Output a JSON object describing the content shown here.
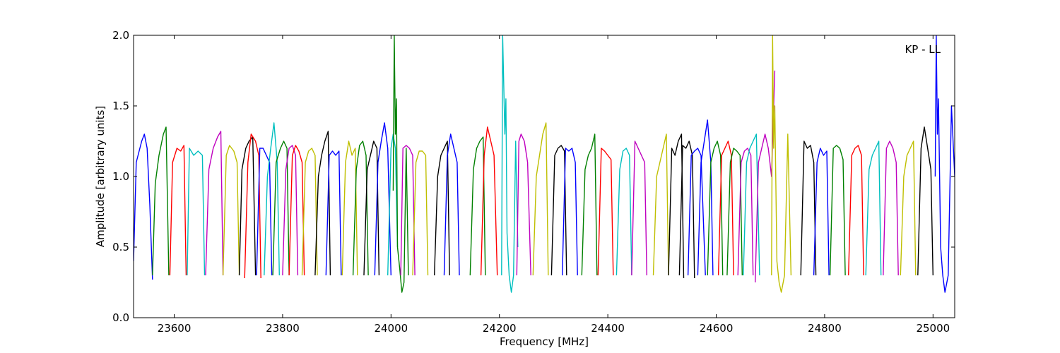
{
  "chart_data": {
    "type": "line",
    "title": "",
    "xlabel": "Frequency [MHz]",
    "ylabel": "Amplitude [arbitrary units]",
    "annotation": "KP - LL",
    "annotation_position": "top-right",
    "xlim": [
      23525,
      25040
    ],
    "ylim": [
      0.0,
      2.0
    ],
    "x_ticks": [
      {
        "value": 23600,
        "label": "23600"
      },
      {
        "value": 23800,
        "label": "23800"
      },
      {
        "value": 24000,
        "label": "24000"
      },
      {
        "value": 24200,
        "label": "24200"
      },
      {
        "value": 24400,
        "label": "24400"
      },
      {
        "value": 24600,
        "label": "24600"
      },
      {
        "value": 24800,
        "label": "24800"
      },
      {
        "value": 25000,
        "label": "25000"
      }
    ],
    "y_ticks": [
      {
        "value": 0.0,
        "label": "0.0"
      },
      {
        "value": 0.5,
        "label": "0.5"
      },
      {
        "value": 1.0,
        "label": "1.0"
      },
      {
        "value": 1.5,
        "label": "1.5"
      },
      {
        "value": 2.0,
        "label": "2.0"
      }
    ],
    "grid": false,
    "legend": "none",
    "color_cycle": [
      "#0000ff",
      "#008000",
      "#ff0000",
      "#00bfbf",
      "#bf00bf",
      "#bfbf00",
      "#000000"
    ],
    "series": [
      {
        "color": "#0000ff",
        "x": [
          23525,
          23530,
          23540,
          23545,
          23550,
          23555,
          23560
        ],
        "y": [
          0.4,
          1.1,
          1.25,
          1.3,
          1.2,
          0.8,
          0.27
        ]
      },
      {
        "color": "#008000",
        "x": [
          23560,
          23565,
          23572,
          23580,
          23585,
          23590
        ],
        "y": [
          0.3,
          0.95,
          1.15,
          1.3,
          1.35,
          0.3
        ]
      },
      {
        "color": "#ff0000",
        "x": [
          23592,
          23597,
          23605,
          23612,
          23618,
          23622
        ],
        "y": [
          0.3,
          1.1,
          1.2,
          1.18,
          1.22,
          0.3
        ]
      },
      {
        "color": "#00bfbf",
        "x": [
          23624,
          23628,
          23636,
          23644,
          23652,
          23656
        ],
        "y": [
          0.3,
          1.2,
          1.15,
          1.18,
          1.15,
          0.3
        ]
      },
      {
        "color": "#bf00bf",
        "x": [
          23658,
          23664,
          23672,
          23680,
          23686,
          23690
        ],
        "y": [
          0.3,
          1.05,
          1.2,
          1.28,
          1.32,
          0.3
        ]
      },
      {
        "color": "#bfbf00",
        "x": [
          23690,
          23696,
          23702,
          23710,
          23716,
          23720
        ],
        "y": [
          0.3,
          1.15,
          1.22,
          1.18,
          1.1,
          0.3
        ]
      },
      {
        "color": "#000000",
        "x": [
          23720,
          23725,
          23732,
          23738,
          23745,
          23750
        ],
        "y": [
          0.3,
          1.05,
          1.2,
          1.25,
          1.28,
          0.3
        ]
      },
      {
        "color": "#ff0000",
        "x": [
          23730,
          23736,
          23742,
          23750,
          23756,
          23760
        ],
        "y": [
          0.28,
          1.1,
          1.3,
          1.25,
          1.15,
          0.28
        ]
      },
      {
        "color": "#0000ff",
        "x": [
          23752,
          23758,
          23764,
          23770,
          23776,
          23780
        ],
        "y": [
          0.3,
          1.2,
          1.2,
          1.15,
          1.1,
          0.3
        ]
      },
      {
        "color": "#00bfbf",
        "x": [
          23766,
          23772,
          23778,
          23784,
          23790,
          23794
        ],
        "y": [
          0.3,
          1.0,
          1.2,
          1.38,
          1.1,
          0.3
        ]
      },
      {
        "color": "#008000",
        "x": [
          23782,
          23788,
          23796,
          23802,
          23808,
          23812
        ],
        "y": [
          0.3,
          1.1,
          1.2,
          1.25,
          1.2,
          0.3
        ]
      },
      {
        "color": "#bf00bf",
        "x": [
          23800,
          23806,
          23812,
          23818,
          23824,
          23828
        ],
        "y": [
          0.3,
          1.05,
          1.2,
          1.22,
          1.15,
          0.3
        ]
      },
      {
        "color": "#ff0000",
        "x": [
          23812,
          23818,
          23824,
          23830,
          23836,
          23840
        ],
        "y": [
          0.3,
          1.15,
          1.22,
          1.18,
          1.1,
          0.3
        ]
      },
      {
        "color": "#bfbf00",
        "x": [
          23836,
          23842,
          23848,
          23854,
          23860,
          23864
        ],
        "y": [
          0.3,
          1.1,
          1.18,
          1.2,
          1.15,
          0.3
        ]
      },
      {
        "color": "#000000",
        "x": [
          23860,
          23866,
          23872,
          23878,
          23884,
          23888
        ],
        "y": [
          0.3,
          1.0,
          1.15,
          1.25,
          1.32,
          0.3
        ]
      },
      {
        "color": "#0000ff",
        "x": [
          23880,
          23886,
          23892,
          23898,
          23904,
          23908
        ],
        "y": [
          0.3,
          1.15,
          1.18,
          1.15,
          1.18,
          0.3
        ]
      },
      {
        "color": "#bfbf00",
        "x": [
          23910,
          23916,
          23922,
          23928,
          23934,
          23938
        ],
        "y": [
          0.3,
          1.1,
          1.25,
          1.15,
          1.2,
          0.3
        ]
      },
      {
        "color": "#008000",
        "x": [
          23930,
          23936,
          23942,
          23948,
          23954,
          23958
        ],
        "y": [
          0.3,
          1.05,
          1.22,
          1.25,
          1.15,
          0.3
        ]
      },
      {
        "color": "#000000",
        "x": [
          23950,
          23956,
          23962,
          23968,
          23974,
          23978
        ],
        "y": [
          0.3,
          1.05,
          1.15,
          1.25,
          1.2,
          0.3
        ]
      },
      {
        "color": "#0000ff",
        "x": [
          23970,
          23976,
          23982,
          23988,
          23994,
          24000
        ],
        "y": [
          0.3,
          1.1,
          1.25,
          1.38,
          1.2,
          0.3
        ]
      },
      {
        "color": "#00bfbf",
        "x": [
          23994,
          24000,
          24004,
          24006,
          24008,
          24012
        ],
        "y": [
          0.3,
          1.2,
          1.3,
          1.25,
          1.2,
          0.5
        ]
      },
      {
        "color": "#008000",
        "x": [
          24004,
          24006,
          24008,
          24010,
          24012,
          24016,
          24020,
          24024,
          24028,
          24032
        ],
        "y": [
          0.9,
          2.0,
          1.3,
          1.55,
          0.5,
          0.35,
          0.18,
          0.25,
          1.2,
          0.3
        ]
      },
      {
        "color": "#bf00bf",
        "x": [
          24018,
          24022,
          24028,
          24034,
          24040,
          24044
        ],
        "y": [
          0.3,
          1.2,
          1.22,
          1.2,
          1.15,
          0.3
        ]
      },
      {
        "color": "#bfbf00",
        "x": [
          24040,
          24046,
          24052,
          24058,
          24064,
          24068
        ],
        "y": [
          0.3,
          1.1,
          1.18,
          1.18,
          1.15,
          0.3
        ]
      },
      {
        "color": "#000000",
        "x": [
          24080,
          24086,
          24092,
          24098,
          24104,
          24108
        ],
        "y": [
          0.3,
          1.0,
          1.15,
          1.2,
          1.25,
          0.3
        ]
      },
      {
        "color": "#0000ff",
        "x": [
          24098,
          24104,
          24110,
          24116,
          24122,
          24126
        ],
        "y": [
          0.3,
          1.15,
          1.3,
          1.2,
          1.1,
          0.3
        ]
      },
      {
        "color": "#008000",
        "x": [
          24146,
          24152,
          24158,
          24164,
          24170,
          24174
        ],
        "y": [
          0.3,
          1.05,
          1.2,
          1.25,
          1.28,
          0.3
        ]
      },
      {
        "color": "#ff0000",
        "x": [
          24166,
          24172,
          24178,
          24184,
          24190,
          24196
        ],
        "y": [
          0.3,
          1.15,
          1.35,
          1.25,
          1.15,
          0.3
        ]
      },
      {
        "color": "#00bfbf",
        "x": [
          24204,
          24206,
          24210,
          24212,
          24214,
          24218,
          24222,
          24226,
          24230,
          24234
        ],
        "y": [
          0.3,
          2.0,
          1.3,
          1.55,
          0.6,
          0.3,
          0.18,
          0.3,
          1.25,
          0.5
        ]
      },
      {
        "color": "#bf00bf",
        "x": [
          24232,
          24236,
          24240,
          24246,
          24252,
          24258
        ],
        "y": [
          0.3,
          1.25,
          1.3,
          1.25,
          1.1,
          0.3
        ]
      },
      {
        "color": "#bfbf00",
        "x": [
          24262,
          24268,
          24274,
          24280,
          24286,
          24290
        ],
        "y": [
          0.3,
          1.0,
          1.15,
          1.3,
          1.38,
          0.3
        ]
      },
      {
        "color": "#000000",
        "x": [
          24296,
          24302,
          24308,
          24314,
          24320,
          24324
        ],
        "y": [
          0.3,
          1.15,
          1.2,
          1.22,
          1.18,
          0.3
        ]
      },
      {
        "color": "#0000ff",
        "x": [
          24316,
          24322,
          24328,
          24334,
          24340,
          24344
        ],
        "y": [
          0.3,
          1.2,
          1.18,
          1.2,
          1.1,
          0.3
        ]
      },
      {
        "color": "#008000",
        "x": [
          24352,
          24358,
          24364,
          24370,
          24376,
          24380
        ],
        "y": [
          0.3,
          1.05,
          1.15,
          1.2,
          1.3,
          0.3
        ]
      },
      {
        "color": "#ff0000",
        "x": [
          24382,
          24388,
          24394,
          24400,
          24406,
          24410
        ],
        "y": [
          0.3,
          1.2,
          1.18,
          1.15,
          1.12,
          0.3
        ]
      },
      {
        "color": "#00bfbf",
        "x": [
          24416,
          24422,
          24428,
          24434,
          24440,
          24444
        ],
        "y": [
          0.3,
          1.05,
          1.18,
          1.2,
          1.15,
          0.3
        ]
      },
      {
        "color": "#bf00bf",
        "x": [
          24444,
          24450,
          24456,
          24462,
          24468,
          24472
        ],
        "y": [
          0.3,
          1.25,
          1.2,
          1.15,
          1.1,
          0.3
        ]
      },
      {
        "color": "#bfbf00",
        "x": [
          24484,
          24490,
          24496,
          24502,
          24508,
          24512
        ],
        "y": [
          0.3,
          1.0,
          1.1,
          1.2,
          1.3,
          0.3
        ]
      },
      {
        "color": "#000000",
        "x": [
          24512,
          24518,
          24524,
          24530,
          24536,
          24540
        ],
        "y": [
          0.3,
          1.2,
          1.15,
          1.25,
          1.3,
          0.28
        ]
      },
      {
        "color": "#000000",
        "x": [
          24532,
          24538,
          24544,
          24550,
          24556,
          24560
        ],
        "y": [
          0.3,
          1.22,
          1.2,
          1.25,
          1.15,
          0.28
        ]
      },
      {
        "color": "#0000ff",
        "x": [
          24548,
          24554,
          24560,
          24566,
          24572,
          24580
        ],
        "y": [
          0.3,
          1.15,
          1.18,
          1.2,
          1.15,
          0.3
        ]
      },
      {
        "color": "#0000ff",
        "x": [
          24566,
          24572,
          24578,
          24584,
          24590,
          24594
        ],
        "y": [
          0.3,
          1.1,
          1.25,
          1.4,
          1.1,
          0.3
        ]
      },
      {
        "color": "#008000",
        "x": [
          24584,
          24590,
          24596,
          24602,
          24608,
          24612
        ],
        "y": [
          0.3,
          1.1,
          1.2,
          1.25,
          1.15,
          0.3
        ]
      },
      {
        "color": "#ff0000",
        "x": [
          24604,
          24610,
          24616,
          24622,
          24628,
          24632
        ],
        "y": [
          0.3,
          1.15,
          1.2,
          1.25,
          1.15,
          0.3
        ]
      },
      {
        "color": "#008000",
        "x": [
          24620,
          24626,
          24632,
          24638,
          24644,
          24648
        ],
        "y": [
          0.3,
          1.1,
          1.2,
          1.18,
          1.15,
          0.3
        ]
      },
      {
        "color": "#bf00bf",
        "x": [
          24640,
          24646,
          24652,
          24658,
          24664,
          24668
        ],
        "y": [
          0.3,
          1.1,
          1.18,
          1.2,
          1.15,
          0.3
        ]
      },
      {
        "color": "#00bfbf",
        "x": [
          24650,
          24656,
          24662,
          24668,
          24674,
          24680
        ],
        "y": [
          0.3,
          1.1,
          1.2,
          1.25,
          1.3,
          0.3
        ]
      },
      {
        "color": "#bf00bf",
        "x": [
          24672,
          24678,
          24684,
          24690,
          24696,
          24702,
          24706,
          24708
        ],
        "y": [
          0.25,
          1.1,
          1.2,
          1.3,
          1.2,
          1.0,
          1.5,
          1.75
        ]
      },
      {
        "color": "#bfbf00",
        "x": [
          24702,
          24704,
          24706,
          24708,
          24712,
          24716,
          24720,
          24726,
          24732,
          24738
        ],
        "y": [
          0.3,
          2.0,
          1.2,
          1.5,
          0.4,
          0.25,
          0.18,
          0.3,
          1.3,
          0.3
        ]
      },
      {
        "color": "#000000",
        "x": [
          24756,
          24762,
          24768,
          24774,
          24780,
          24784
        ],
        "y": [
          0.3,
          1.25,
          1.2,
          1.22,
          1.1,
          0.3
        ]
      },
      {
        "color": "#0000ff",
        "x": [
          24780,
          24786,
          24792,
          24798,
          24804,
          24808
        ],
        "y": [
          0.3,
          1.1,
          1.2,
          1.15,
          1.18,
          0.3
        ]
      },
      {
        "color": "#008000",
        "x": [
          24810,
          24816,
          24822,
          24828,
          24834,
          24838
        ],
        "y": [
          0.3,
          1.2,
          1.22,
          1.2,
          1.12,
          0.3
        ]
      },
      {
        "color": "#ff0000",
        "x": [
          24844,
          24850,
          24856,
          24862,
          24868,
          24872
        ],
        "y": [
          0.3,
          1.15,
          1.2,
          1.22,
          1.15,
          0.3
        ]
      },
      {
        "color": "#00bfbf",
        "x": [
          24876,
          24882,
          24888,
          24894,
          24900,
          24904
        ],
        "y": [
          0.3,
          1.05,
          1.15,
          1.2,
          1.25,
          0.3
        ]
      },
      {
        "color": "#bf00bf",
        "x": [
          24908,
          24914,
          24920,
          24926,
          24932,
          24936
        ],
        "y": [
          0.3,
          1.2,
          1.25,
          1.2,
          1.1,
          0.3
        ]
      },
      {
        "color": "#bfbf00",
        "x": [
          24940,
          24946,
          24952,
          24958,
          24964,
          24968
        ],
        "y": [
          0.3,
          1.0,
          1.15,
          1.2,
          1.25,
          0.3
        ]
      },
      {
        "color": "#000000",
        "x": [
          24972,
          24978,
          24984,
          24990,
          24996,
          25000
        ],
        "y": [
          0.3,
          1.2,
          1.35,
          1.2,
          1.05,
          0.3
        ]
      },
      {
        "color": "#0000ff",
        "x": [
          25004,
          25006,
          25008,
          25010,
          25014,
          25018,
          25022,
          25028,
          25034,
          25040
        ],
        "y": [
          1.0,
          2.0,
          1.3,
          1.55,
          0.5,
          0.3,
          0.18,
          0.3,
          1.5,
          1.0
        ]
      }
    ]
  }
}
